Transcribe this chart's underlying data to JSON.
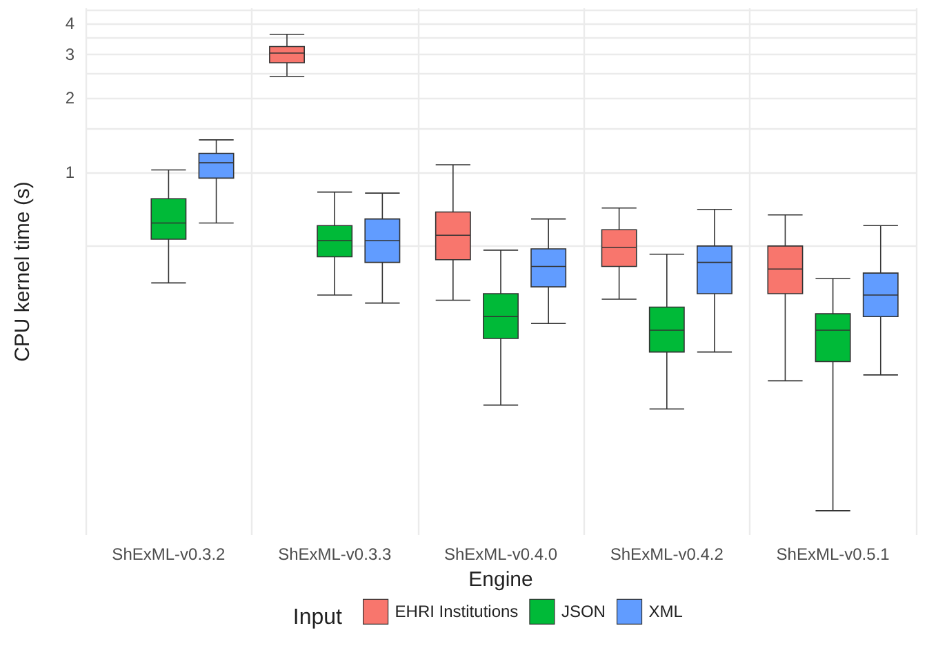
{
  "chart_data": {
    "type": "box",
    "xlabel": "Engine",
    "ylabel": "CPU kernel time (s)",
    "legend_title": "Input",
    "legend": "bottom",
    "log": "y",
    "grid": true,
    "categories": [
      "ShExML-v0.3.2",
      "ShExML-v0.3.3",
      "ShExML-v0.4.0",
      "ShExML-v0.4.2",
      "ShExML-v0.5.1"
    ],
    "ylim": [
      0.034,
      4.6
    ],
    "yticks": [
      {
        "value": 0.5,
        "label": null
      },
      1,
      {
        "value": 1.5,
        "label": null
      },
      2,
      {
        "value": 2.5,
        "label": null
      },
      3,
      {
        "value": 3.5,
        "label": null
      },
      4,
      {
        "value": 4.5,
        "label": null
      }
    ],
    "series": [
      {
        "name": "EHRI Institutions",
        "color": "#f8766d",
        "boxes": [
          null,
          {
            "low": 2.44,
            "q1": 2.77,
            "median": 3.03,
            "q3": 3.22,
            "high": 3.61
          },
          {
            "low": 0.303,
            "q1": 0.442,
            "median": 0.555,
            "q3": 0.689,
            "high": 1.07
          },
          {
            "low": 0.306,
            "q1": 0.415,
            "median": 0.496,
            "q3": 0.584,
            "high": 0.715
          },
          {
            "low": 0.143,
            "q1": 0.322,
            "median": 0.405,
            "q3": 0.502,
            "high": 0.671
          }
        ]
      },
      {
        "name": "JSON",
        "color": "#00ba38",
        "boxes": [
          {
            "low": 0.356,
            "q1": 0.535,
            "median": 0.622,
            "q3": 0.78,
            "high": 1.02
          },
          {
            "low": 0.318,
            "q1": 0.454,
            "median": 0.528,
            "q3": 0.607,
            "high": 0.83
          },
          {
            "low": 0.114,
            "q1": 0.212,
            "median": 0.26,
            "q3": 0.322,
            "high": 0.483
          },
          {
            "low": 0.11,
            "q1": 0.187,
            "median": 0.229,
            "q3": 0.284,
            "high": 0.465
          },
          {
            "low": 0.0426,
            "q1": 0.171,
            "median": 0.229,
            "q3": 0.267,
            "high": 0.371
          }
        ]
      },
      {
        "name": "XML",
        "color": "#619cff",
        "boxes": [
          {
            "low": 0.622,
            "q1": 0.945,
            "median": 1.09,
            "q3": 1.19,
            "high": 1.35
          },
          {
            "low": 0.295,
            "q1": 0.431,
            "median": 0.528,
            "q3": 0.646,
            "high": 0.822
          },
          {
            "low": 0.244,
            "q1": 0.343,
            "median": 0.415,
            "q3": 0.489,
            "high": 0.646
          },
          {
            "low": 0.187,
            "q1": 0.322,
            "median": 0.431,
            "q3": 0.502,
            "high": 0.706
          },
          {
            "low": 0.151,
            "q1": 0.26,
            "median": 0.318,
            "q3": 0.39,
            "high": 0.607
          }
        ]
      }
    ]
  }
}
